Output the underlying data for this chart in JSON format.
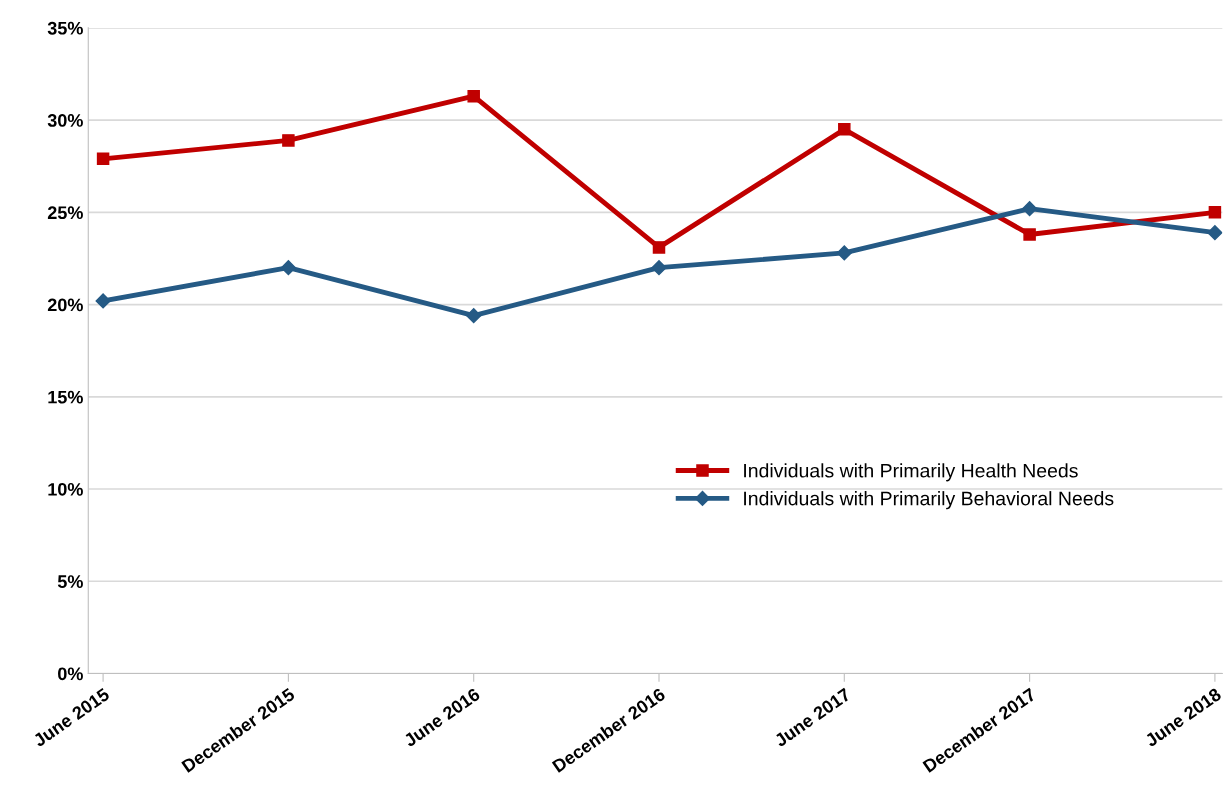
{
  "chart_data": {
    "type": "line",
    "categories": [
      "June 2015",
      "December 2015",
      "June 2016",
      "December 2016",
      "June 2017",
      "December 2017",
      "June 2018"
    ],
    "series": [
      {
        "name": "Individuals with Primarily Health Needs",
        "color": "#c00000",
        "marker": "square",
        "values": [
          27.9,
          28.9,
          31.3,
          23.1,
          29.5,
          23.8,
          25.0
        ]
      },
      {
        "name": "Individuals with Primarily Behavioral Needs",
        "color": "#255a85",
        "marker": "diamond",
        "values": [
          20.2,
          22.0,
          19.4,
          22.0,
          22.8,
          25.2,
          23.9
        ]
      }
    ],
    "ylim": [
      0,
      35
    ],
    "yticks": [
      {
        "value": 0,
        "label": "0%"
      },
      {
        "value": 5,
        "label": "5%"
      },
      {
        "value": 10,
        "label": "10%"
      },
      {
        "value": 15,
        "label": "15%"
      },
      {
        "value": 20,
        "label": "20%"
      },
      {
        "value": 25,
        "label": "25%"
      },
      {
        "value": 30,
        "label": "30%"
      },
      {
        "value": 35,
        "label": "35%"
      }
    ],
    "grid": "y",
    "legend": "center right",
    "line_style": "solid"
  }
}
